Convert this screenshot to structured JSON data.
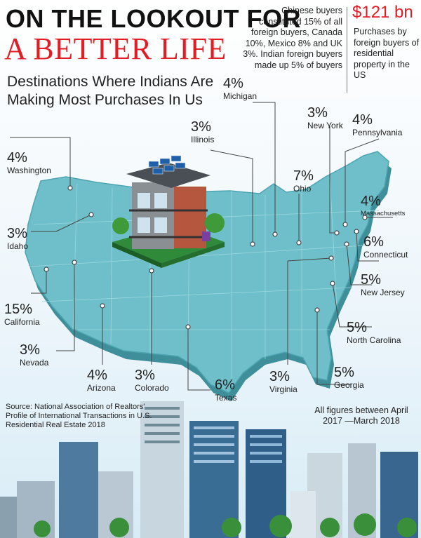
{
  "header": {
    "title_line1": "ON THE LOOKOUT FOR",
    "title_line2": "A BETTER LIFE",
    "subtitle": "Destinations Where Indians Are Making Most Purchases In Us"
  },
  "fact_box": {
    "note": "Chinese buyers constituted 15% of all foreign buyers, Canada 10%, Mexico 8% and UK 3%. Indian foreign buyers made up 5% of buyers",
    "big_figure": "$121 bn",
    "big_caption": "Purchases by foreign buyers of residential property in the US"
  },
  "states": [
    {
      "name": "Washington",
      "pct": "4%"
    },
    {
      "name": "Idaho",
      "pct": "3%"
    },
    {
      "name": "California",
      "pct": "15%"
    },
    {
      "name": "Nevada",
      "pct": "3%"
    },
    {
      "name": "Arizona",
      "pct": "4%"
    },
    {
      "name": "Colorado",
      "pct": "3%"
    },
    {
      "name": "Texas",
      "pct": "6%"
    },
    {
      "name": "Illinois",
      "pct": "3%"
    },
    {
      "name": "Michigan",
      "pct": "4%"
    },
    {
      "name": "Ohio",
      "pct": "7%"
    },
    {
      "name": "New York",
      "pct": "3%"
    },
    {
      "name": "Pennsylvania",
      "pct": "4%"
    },
    {
      "name": "Massachusetts",
      "pct": "4%"
    },
    {
      "name": "Connecticut",
      "pct": "6%"
    },
    {
      "name": "New Jersey",
      "pct": "5%"
    },
    {
      "name": "North Carolina",
      "pct": "5%"
    },
    {
      "name": "Virginia",
      "pct": "3%"
    },
    {
      "name": "Georgia",
      "pct": "5%"
    }
  ],
  "footer": {
    "source": "Source: National Association of Realtors' Profile of International Transactions in U.S. Residential Real Estate 2018",
    "period": "All figures between April 2017 —March 2018"
  },
  "colors": {
    "accent": "#e01e25",
    "map": "#6fbfca",
    "map_dark": "#3f8f9a"
  }
}
